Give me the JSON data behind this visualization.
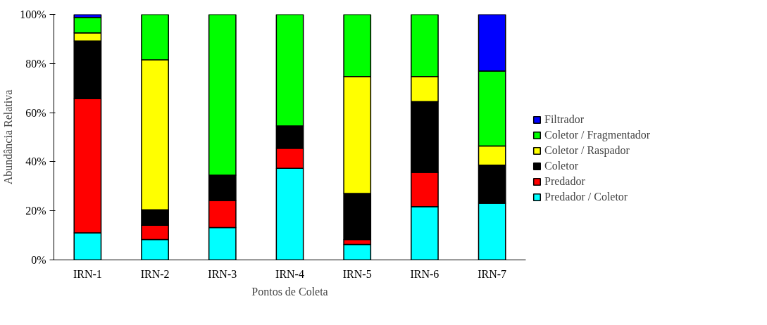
{
  "chart_data": {
    "type": "bar",
    "stacked": true,
    "xlabel": "Pontos de Coleta",
    "ylabel": "Abundância Relativa",
    "categories": [
      "IRN-1",
      "IRN-2",
      "IRN-3",
      "IRN-4",
      "IRN-5",
      "IRN-6",
      "IRN-7"
    ],
    "series": [
      {
        "name": "Predador / Coletor",
        "color": "#00ffff",
        "values": [
          11.0,
          8.3,
          13.2,
          37.3,
          6.3,
          21.7,
          23.1
        ]
      },
      {
        "name": "Predador",
        "color": "#ff0000",
        "values": [
          54.7,
          5.8,
          11.0,
          8.2,
          2.0,
          14.0,
          null
        ]
      },
      {
        "name": "Coletor",
        "color": "#000000",
        "values": [
          23.5,
          6.3,
          10.3,
          9.1,
          18.8,
          28.8,
          15.5
        ]
      },
      {
        "name": "Coletor / Raspador",
        "color": "#ffff00",
        "values": [
          3.3,
          61.1,
          null,
          null,
          47.6,
          10.2,
          7.8
        ]
      },
      {
        "name": "Coletor / Fragmentador",
        "color": "#00ff00",
        "values": [
          6.3,
          18.5,
          65.5,
          45.4,
          25.3,
          25.3,
          30.5
        ]
      },
      {
        "name": "Filtrador",
        "color": "#0000ff",
        "values": [
          1.2,
          null,
          null,
          null,
          null,
          null,
          23.1
        ]
      }
    ],
    "ylim": [
      0,
      100
    ],
    "yticks": [
      {
        "value": 0,
        "label": "0%"
      },
      {
        "value": 20,
        "label": "20%"
      },
      {
        "value": 40,
        "label": "40%"
      },
      {
        "value": 60,
        "label": "60%"
      },
      {
        "value": 80,
        "label": "80%"
      },
      {
        "value": 100,
        "label": "100%"
      }
    ],
    "grid": false,
    "legend": "right"
  }
}
